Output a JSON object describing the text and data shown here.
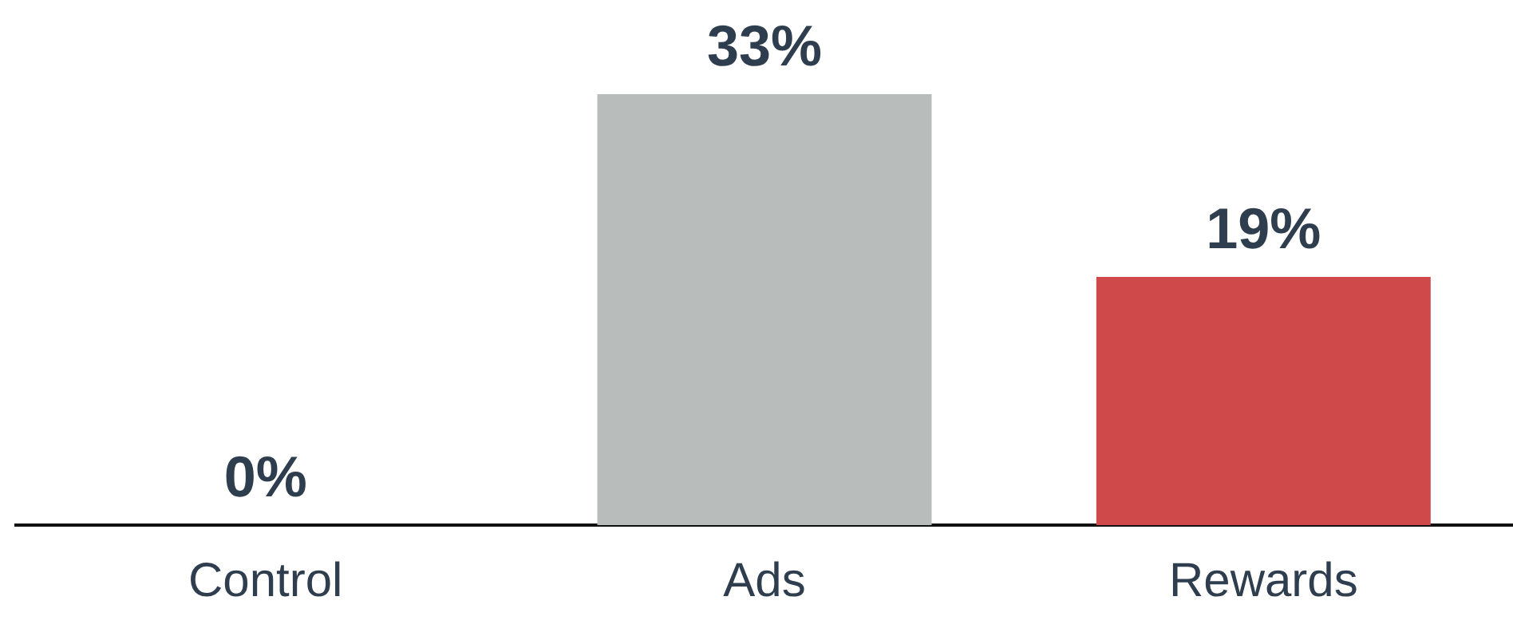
{
  "chart_data": {
    "type": "bar",
    "categories": [
      "Control",
      "Ads",
      "Rewards"
    ],
    "values": [
      0,
      33,
      19
    ],
    "colors": [
      "#b8bdbc",
      "#b8bdbc",
      "#cf494b"
    ],
    "value_labels": [
      "0%",
      "33%",
      "19%"
    ],
    "grid": false,
    "legend": false,
    "tick_labels": "x"
  }
}
